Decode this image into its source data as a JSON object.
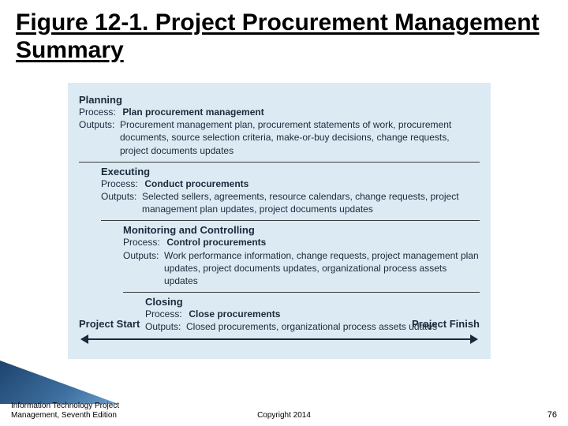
{
  "title": "Figure 12-1. Project Procurement Management Summary",
  "figure": {
    "background_color": "#dceaf4",
    "border_color": "#3a3a3a",
    "text_color": "#1a2a3a",
    "phases": [
      {
        "indent": 0,
        "name": "Planning",
        "process_label": "Process:",
        "process": "Plan procurement management",
        "outputs_label": "Outputs:",
        "outputs": "Procurement management plan, procurement statements of work, procurement documents, source selection criteria, make-or-buy decisions, change requests, project documents updates"
      },
      {
        "indent": 1,
        "name": "Executing",
        "process_label": "Process:",
        "process": "Conduct procurements",
        "outputs_label": "Outputs:",
        "outputs": "Selected sellers, agreements, resource calendars, change requests, project management plan updates, project documents updates"
      },
      {
        "indent": 2,
        "name": "Monitoring and Controlling",
        "process_label": "Process:",
        "process": "Control procurements",
        "outputs_label": "Outputs:",
        "outputs": "Work performance information, change requests, project management plan updates, project documents updates, organizational process assets updates"
      },
      {
        "indent": 3,
        "name": "Closing",
        "process_label": "Process:",
        "process": "Close procurements",
        "outputs_label": "Outputs:",
        "outputs": "Closed procurements, organizational process assets udates"
      }
    ],
    "axis_left": "Project Start",
    "axis_right": "Project Finish"
  },
  "footer": {
    "left_line1": "Information Technology Project",
    "left_line2": "Management, Seventh Edition",
    "center": "Copyright 2014",
    "page": "76"
  }
}
